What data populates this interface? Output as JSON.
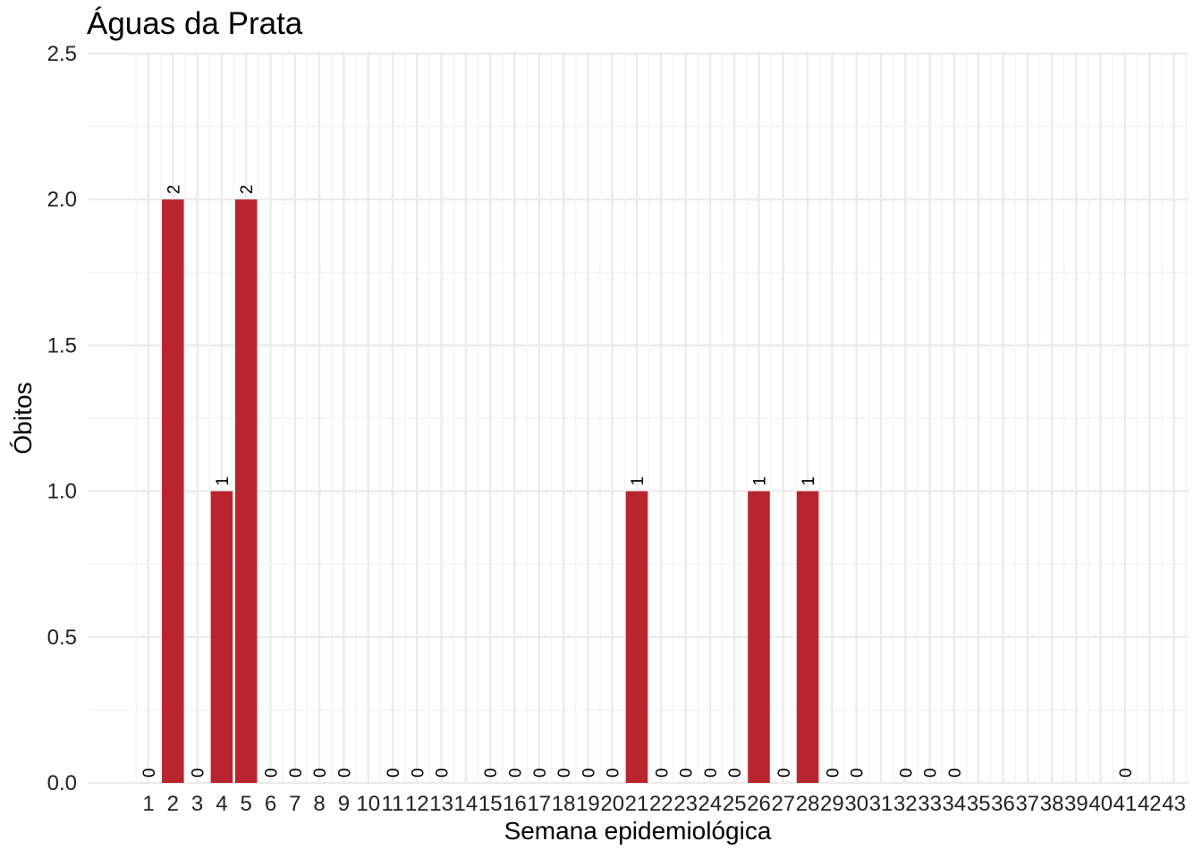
{
  "chart_data": {
    "type": "bar",
    "title": "Águas da Prata",
    "xlabel": "Semana epidemiológica",
    "ylabel": "Óbitos",
    "categories": [
      "1",
      "2",
      "3",
      "4",
      "5",
      "6",
      "7",
      "8",
      "9",
      "10",
      "11",
      "12",
      "13",
      "14",
      "15",
      "16",
      "17",
      "18",
      "19",
      "20",
      "21",
      "22",
      "23",
      "24",
      "25",
      "26",
      "27",
      "28",
      "29",
      "30",
      "31",
      "32",
      "33",
      "34",
      "35",
      "36",
      "37",
      "38",
      "39",
      "40",
      "41",
      "42",
      "43"
    ],
    "values": [
      0,
      2,
      0,
      1,
      2,
      0,
      0,
      0,
      0,
      null,
      0,
      0,
      0,
      null,
      0,
      0,
      0,
      0,
      0,
      0,
      1,
      0,
      0,
      0,
      0,
      1,
      0,
      1,
      0,
      0,
      null,
      0,
      0,
      0,
      null,
      null,
      null,
      null,
      null,
      null,
      0,
      null,
      null
    ],
    "ylim": [
      0,
      2.5
    ],
    "yticks": [
      "0.0",
      "0.5",
      "1.0",
      "1.5",
      "2.0",
      "2.5"
    ],
    "bar_color": "#b8252f",
    "grid": true,
    "legend": "none"
  }
}
